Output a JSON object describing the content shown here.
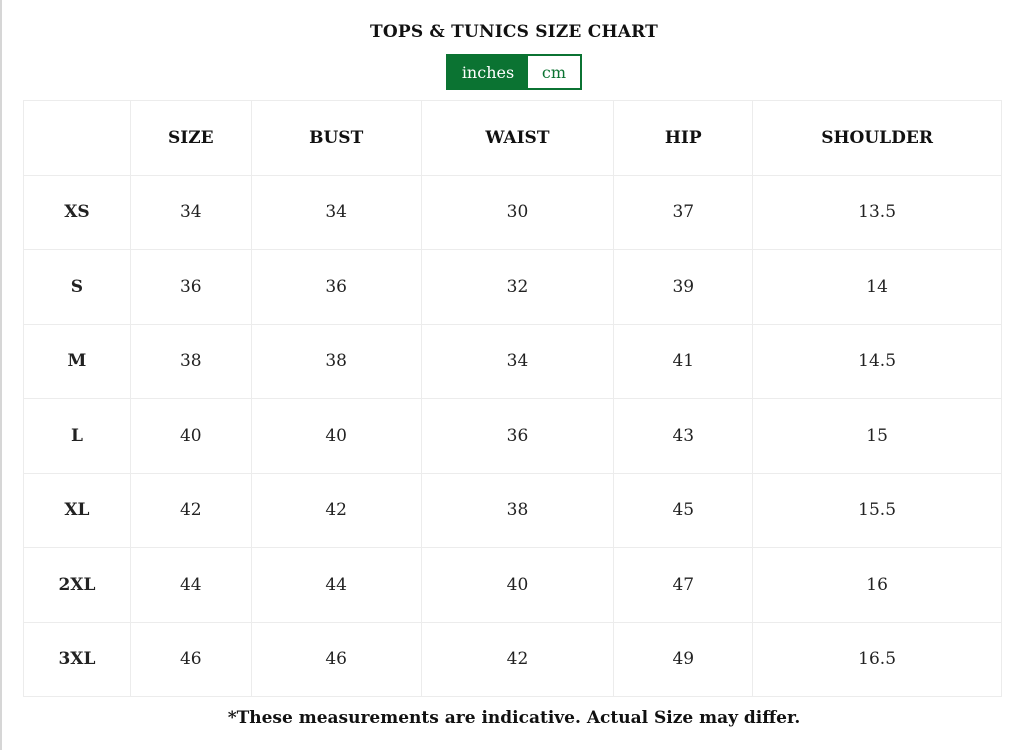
{
  "title": "TOPS & TUNICS SIZE CHART",
  "unit_toggle": {
    "options": [
      "inches",
      "cm"
    ],
    "selected": "inches",
    "accent_color": "#0b7332"
  },
  "table": {
    "headers": [
      "",
      "SIZE",
      "BUST",
      "WAIST",
      "HIP",
      "SHOULDER"
    ],
    "rows": [
      [
        "XS",
        "34",
        "34",
        "30",
        "37",
        "13.5"
      ],
      [
        "S",
        "36",
        "36",
        "32",
        "39",
        "14"
      ],
      [
        "M",
        "38",
        "38",
        "34",
        "41",
        "14.5"
      ],
      [
        "L",
        "40",
        "40",
        "36",
        "43",
        "15"
      ],
      [
        "XL",
        "42",
        "42",
        "38",
        "45",
        "15.5"
      ],
      [
        "2XL",
        "44",
        "44",
        "40",
        "47",
        "16"
      ],
      [
        "3XL",
        "46",
        "46",
        "42",
        "49",
        "16.5"
      ]
    ]
  },
  "note": "*These measurements are indicative. Actual Size may differ."
}
